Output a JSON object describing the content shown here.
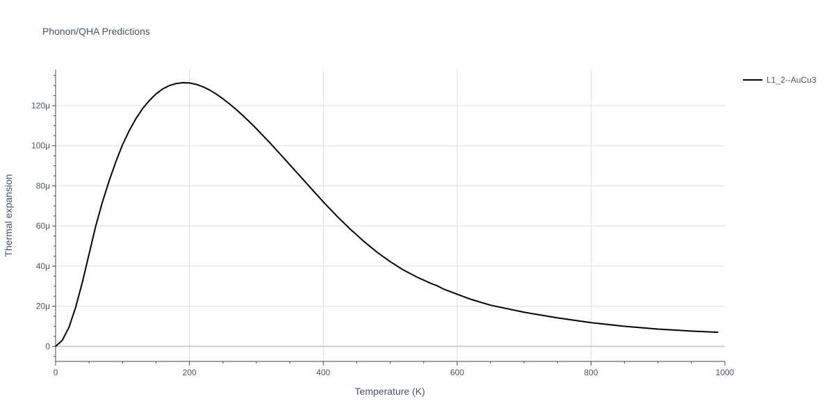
{
  "chart_data": {
    "type": "line",
    "title": "Phonon/QHA Predictions",
    "xlabel": "Temperature (K)",
    "ylabel": "Thermal expansion",
    "xlim": [
      0,
      1000
    ],
    "ylim": [
      -7.5e-06,
      0.000138
    ],
    "x_ticks": [
      0,
      200,
      400,
      600,
      800,
      1000
    ],
    "x_tick_labels": [
      "0",
      "200",
      "400",
      "600",
      "800",
      "1000"
    ],
    "y_ticks": [
      0,
      2e-05,
      4e-05,
      6e-05,
      8e-05,
      0.0001,
      0.00012
    ],
    "y_tick_labels": [
      "0",
      "20μ",
      "40μ",
      "60μ",
      "80μ",
      "100μ",
      "120μ"
    ],
    "grid": true,
    "legend_position": "top-right",
    "series": [
      {
        "name": "L1_2--AuCu3",
        "color": "#000000",
        "x": [
          0,
          10,
          20,
          30,
          40,
          50,
          60,
          70,
          80,
          90,
          100,
          110,
          120,
          130,
          140,
          150,
          160,
          170,
          180,
          190,
          200,
          210,
          220,
          230,
          240,
          250,
          260,
          270,
          280,
          290,
          300,
          320,
          340,
          360,
          380,
          400,
          420,
          440,
          460,
          480,
          500,
          520,
          540,
          560,
          570,
          580,
          600,
          620,
          650,
          700,
          750,
          800,
          850,
          900,
          950,
          990
        ],
        "y": [
          0,
          3e-06,
          9.5e-06,
          1.95e-05,
          3.2e-05,
          4.6e-05,
          6e-05,
          7.2e-05,
          8.25e-05,
          9.2e-05,
          0.0001005,
          0.0001075,
          0.0001135,
          0.0001185,
          0.0001225,
          0.0001258,
          0.0001283,
          0.00013,
          0.000131,
          0.0001314,
          0.0001313,
          0.0001306,
          0.0001294,
          0.0001278,
          0.0001258,
          0.0001234,
          0.0001208,
          0.000118,
          0.000115,
          0.0001118,
          0.0001085,
          0.0001015,
          9.42e-05,
          8.68e-05,
          7.94e-05,
          7.2e-05,
          6.5e-05,
          5.85e-05,
          5.25e-05,
          4.7e-05,
          4.22e-05,
          3.8e-05,
          3.45e-05,
          3.15e-05,
          3.02e-05,
          2.85e-05,
          2.6e-05,
          2.35e-05,
          2.05e-05,
          1.7e-05,
          1.42e-05,
          1.18e-05,
          1e-05,
          8.6e-06,
          7.6e-06,
          7e-06
        ]
      }
    ]
  }
}
